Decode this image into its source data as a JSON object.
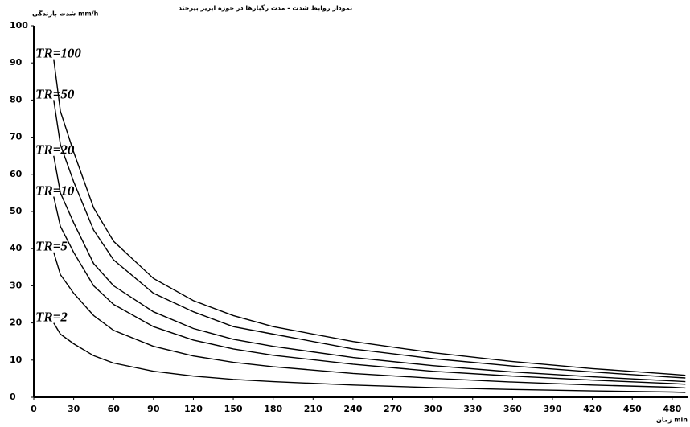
{
  "chart_data": {
    "type": "line",
    "title": "نمودار روابط شدت - مدت رگبارها در حوزه ابریز بیرجند",
    "y_label": "شدت بارندگی mm/h",
    "x_label": "زمان min",
    "x": [
      15,
      20,
      30,
      45,
      60,
      90,
      120,
      150,
      180,
      240,
      300,
      360,
      420,
      480,
      490
    ],
    "series": [
      {
        "name": "TR=100",
        "color": "#000000",
        "values": [
          91,
          77,
          66,
          51,
          42,
          32,
          26,
          22,
          19,
          15,
          12,
          9.6,
          7.7,
          6.2,
          5.9
        ]
      },
      {
        "name": "TR=50",
        "color": "#000000",
        "values": [
          80,
          68,
          58,
          45,
          37,
          28,
          23,
          19,
          17,
          13,
          10.4,
          8.4,
          6.8,
          5.4,
          5.2
        ]
      },
      {
        "name": "TR=20",
        "color": "#000000",
        "values": [
          65,
          55,
          47,
          36,
          30,
          23,
          18.5,
          15.6,
          13.7,
          10.7,
          8.5,
          6.8,
          5.5,
          4.4,
          4.2
        ]
      },
      {
        "name": "TR=10",
        "color": "#000000",
        "values": [
          54,
          46,
          39,
          30,
          25,
          19,
          15.4,
          13,
          11.3,
          8.9,
          7,
          5.7,
          4.6,
          3.7,
          3.5
        ]
      },
      {
        "name": "TR=5",
        "color": "#000000",
        "values": [
          39,
          33,
          28,
          22,
          18,
          13.7,
          11.1,
          9.4,
          8.2,
          6.4,
          5.1,
          4.1,
          3.3,
          2.7,
          2.5
        ]
      },
      {
        "name": "TR=2",
        "color": "#000000",
        "values": [
          20,
          17,
          14.4,
          11.2,
          9.2,
          7,
          5.7,
          4.8,
          4.2,
          3.3,
          2.6,
          2.1,
          1.7,
          1.4,
          1.3
        ]
      }
    ],
    "xlim": [
      0,
      491
    ],
    "xticks": [
      0,
      30,
      60,
      90,
      120,
      150,
      180,
      210,
      240,
      270,
      300,
      330,
      360,
      390,
      420,
      450,
      480
    ],
    "ylim": [
      0,
      100
    ],
    "yticks": [
      0,
      10,
      20,
      30,
      40,
      50,
      60,
      70,
      80,
      90,
      100
    ],
    "grid": false
  }
}
